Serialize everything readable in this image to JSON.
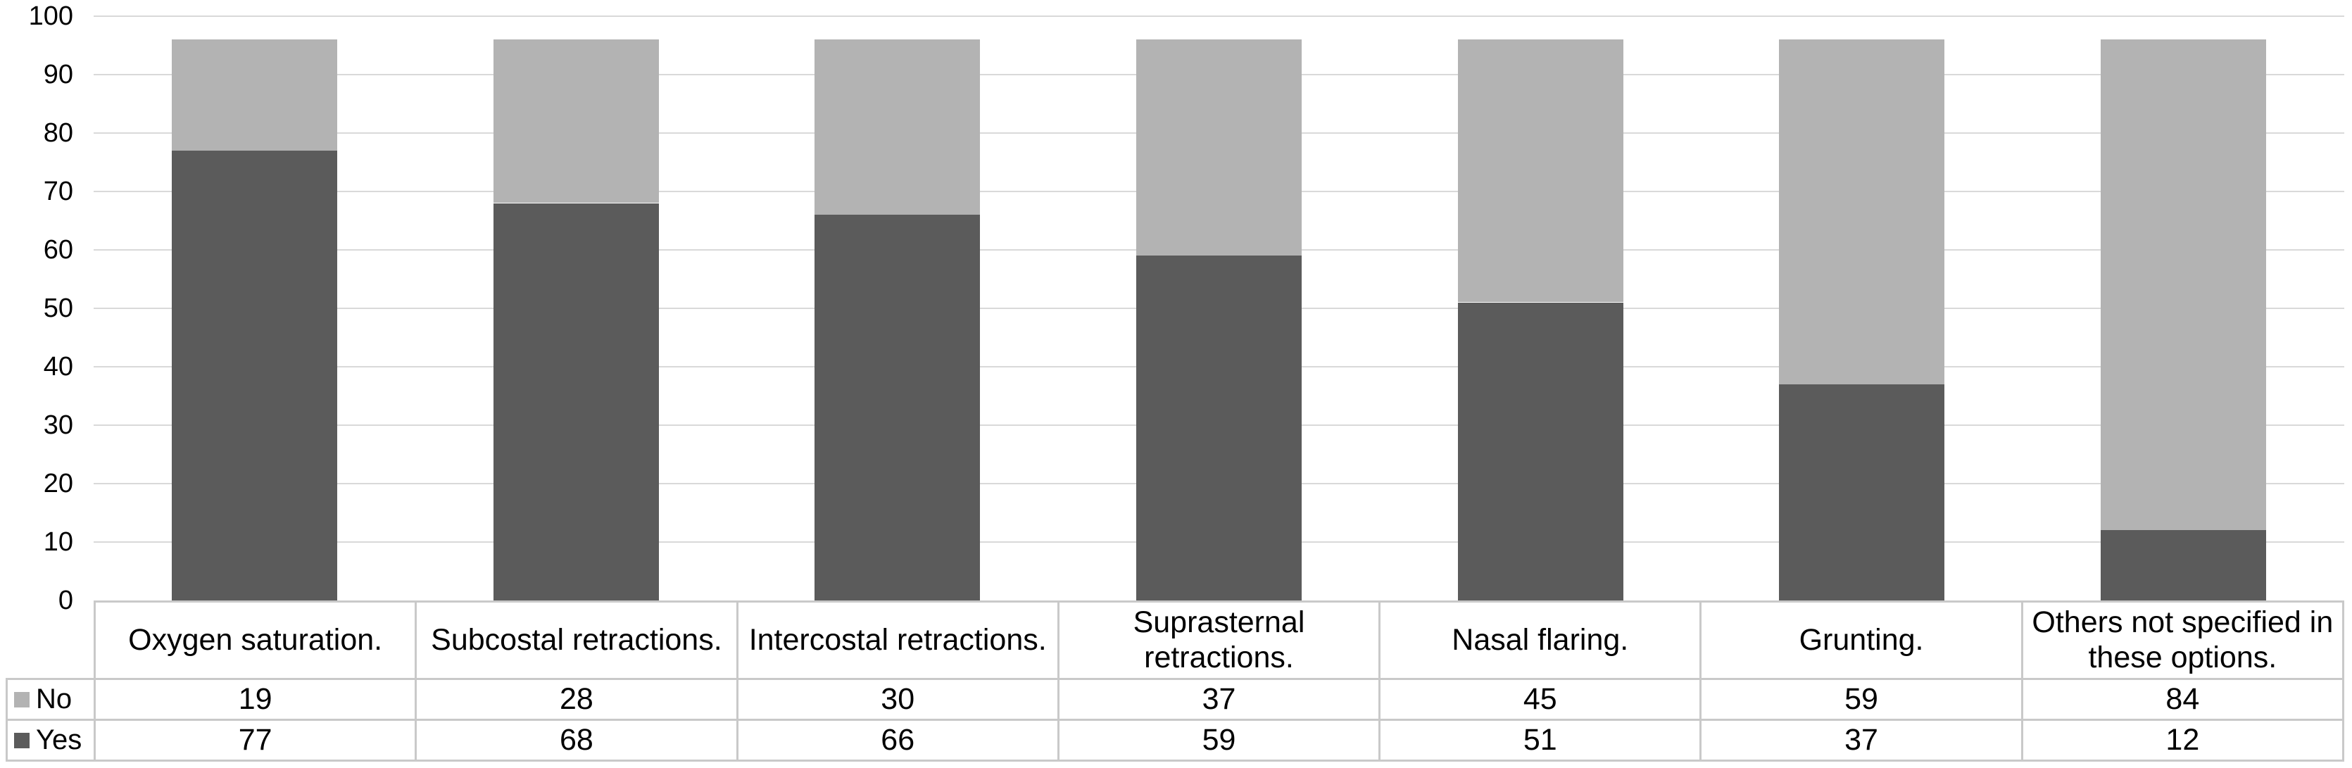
{
  "colors": {
    "background": "#ffffff",
    "text": "#000000",
    "table_border": "#c9c9c9"
  },
  "chart_data": {
    "type": "bar",
    "variant": "stacked-column",
    "title": "",
    "xlabel": "",
    "ylabel": "",
    "categories": [
      "Oxygen saturation.",
      "Subcostal retractions.",
      "Intercostal retractions.",
      "Suprasternal retractions.",
      "Nasal flaring.",
      "Grunting.",
      "Others not specified in these options."
    ],
    "series": [
      {
        "name": "Yes",
        "color": "#5b5b5b",
        "values": [
          77,
          68,
          66,
          59,
          51,
          37,
          12
        ]
      },
      {
        "name": "No",
        "color": "#b3b3b3",
        "values": [
          19,
          28,
          30,
          37,
          45,
          59,
          84
        ]
      }
    ],
    "stack_order_bottom_to_top": [
      "Yes",
      "No"
    ],
    "ylim": [
      0,
      100
    ],
    "y_ticks": [
      "0",
      "10",
      "20",
      "30",
      "40",
      "50",
      "60",
      "70",
      "80",
      "90",
      "100"
    ],
    "grid": true,
    "gridline_color": "#d9d9d9",
    "legend_position": "data-table-left-column",
    "data_table": {
      "rows": [
        {
          "label": "No",
          "swatch_color": "#b3b3b3",
          "values": [
            "19",
            "28",
            "30",
            "37",
            "45",
            "59",
            "84"
          ]
        },
        {
          "label": "Yes",
          "swatch_color": "#5b5b5b",
          "values": [
            "77",
            "68",
            "66",
            "59",
            "51",
            "37",
            "12"
          ]
        }
      ]
    }
  }
}
